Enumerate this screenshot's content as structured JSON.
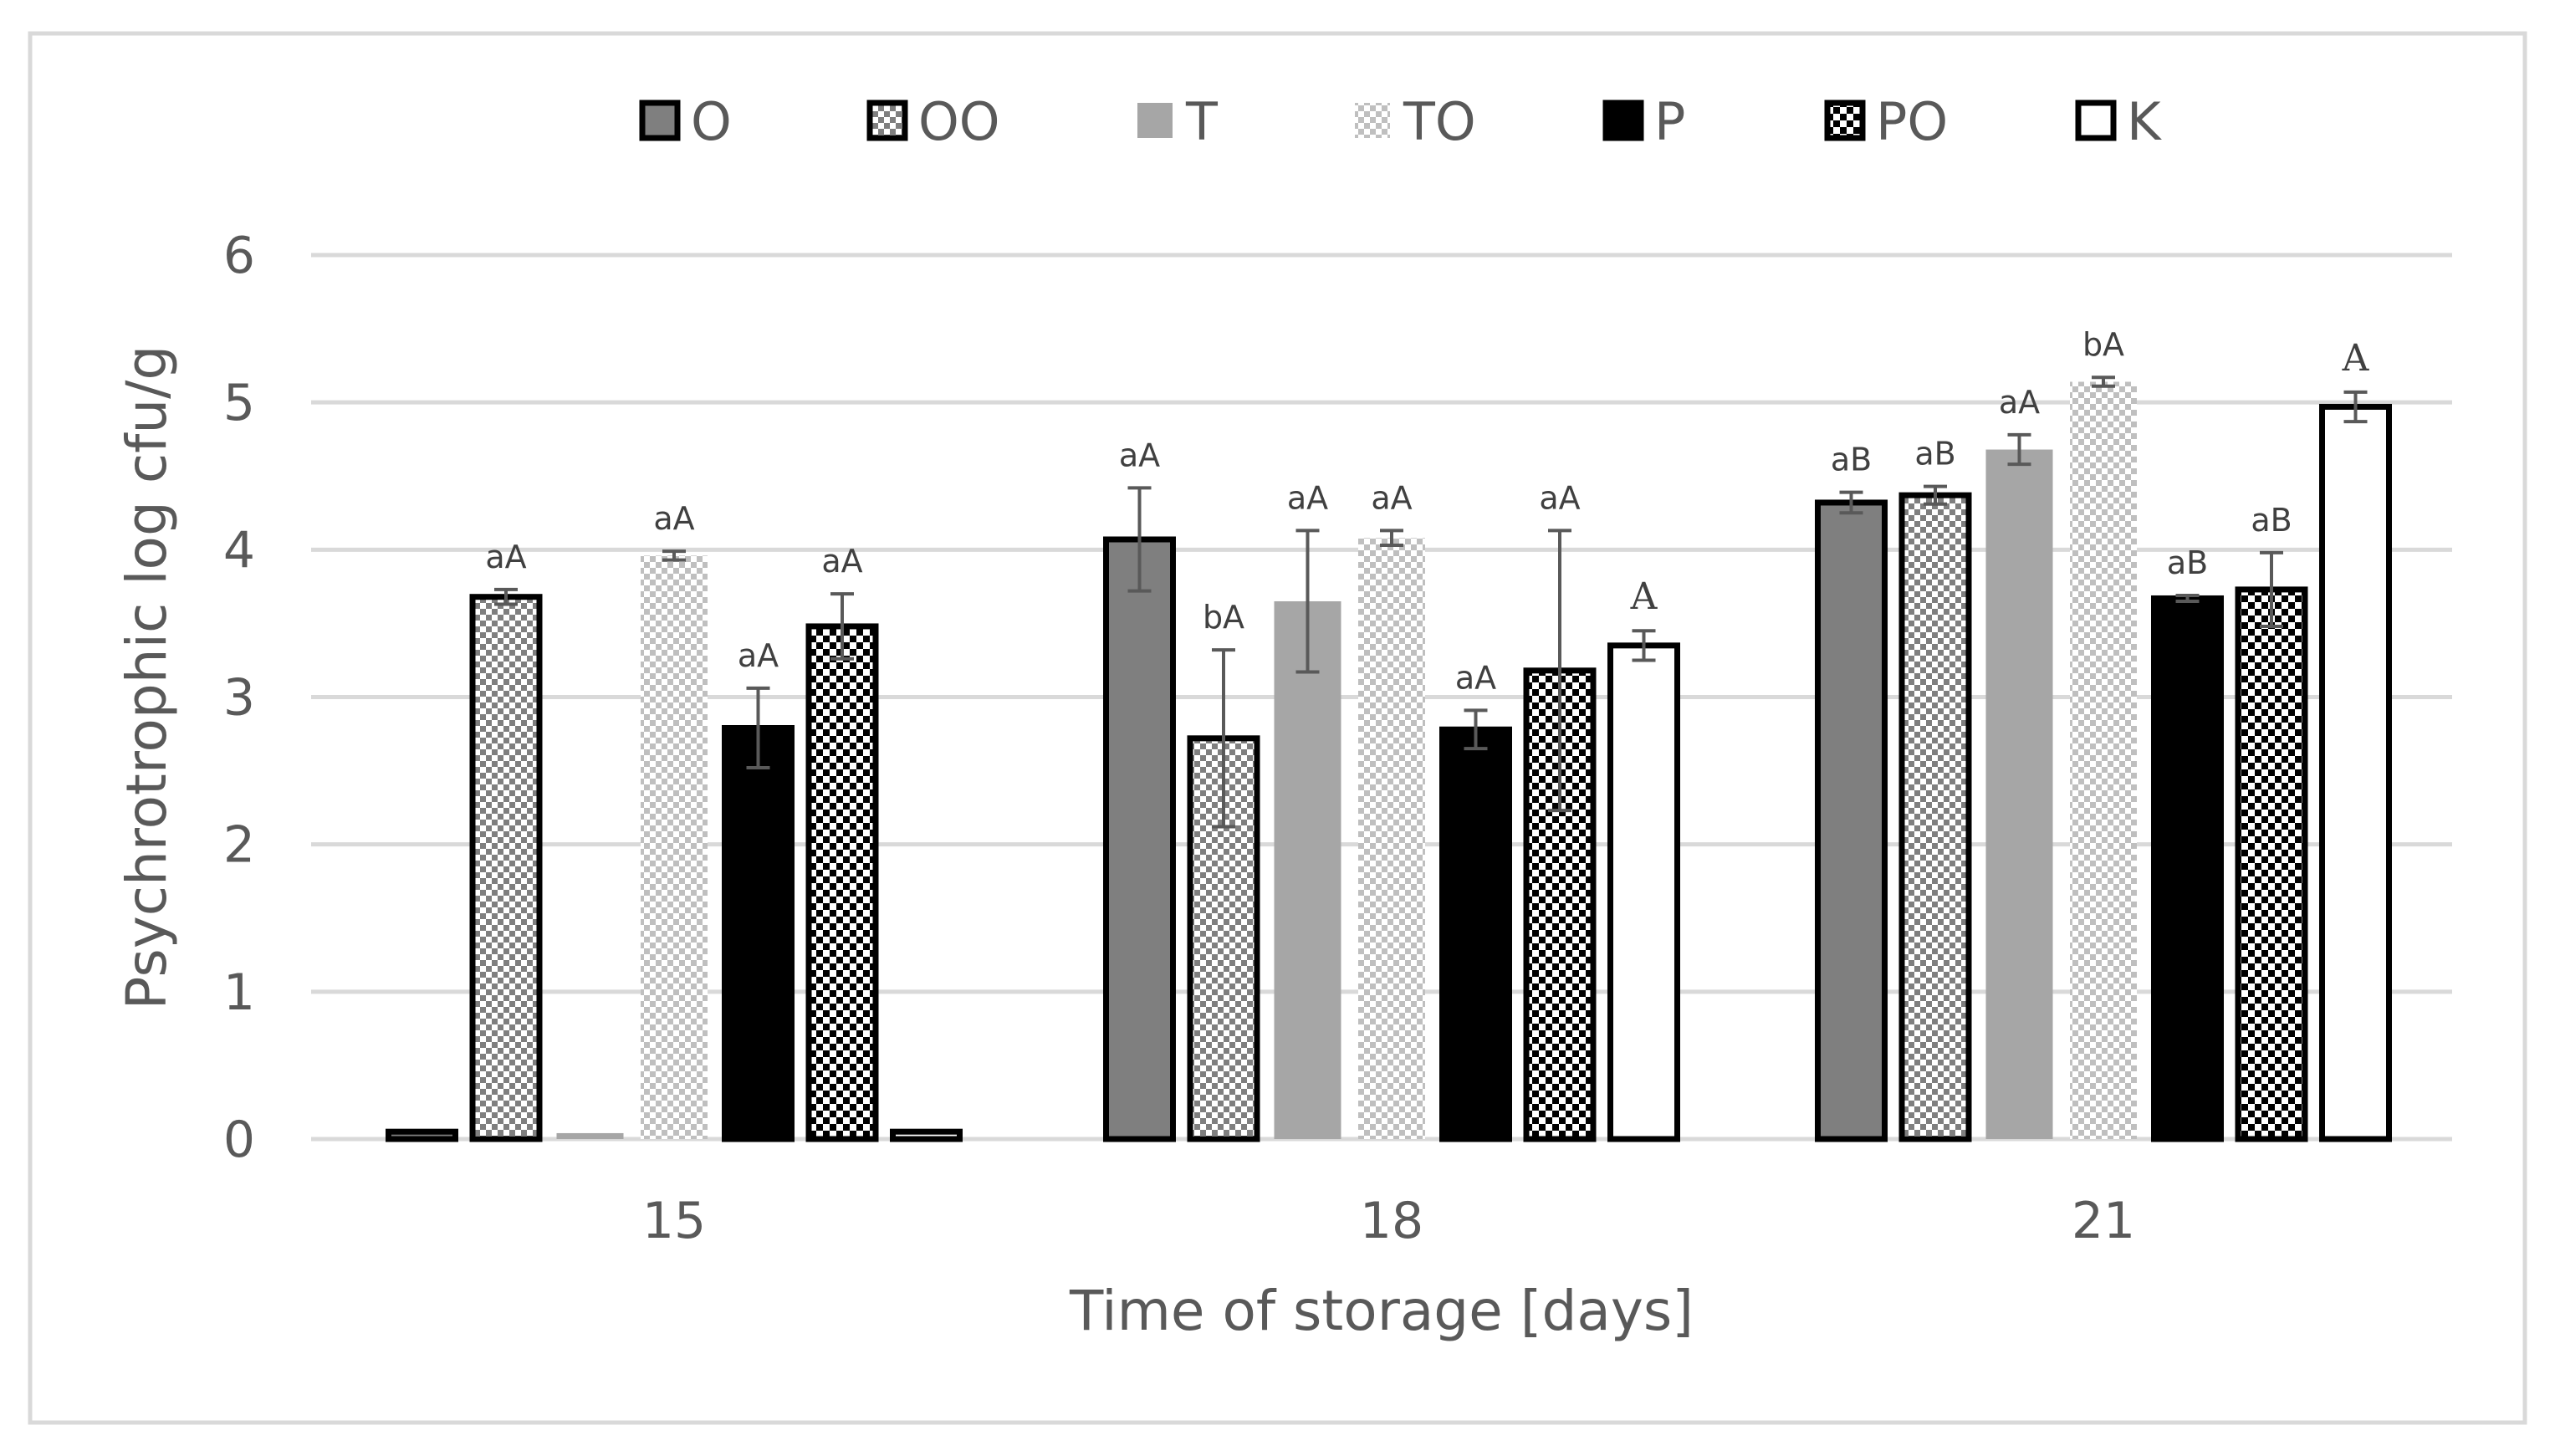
{
  "chart_data": {
    "type": "bar",
    "title": "",
    "xlabel": "Time of storage [days]",
    "ylabel": "Psychrotrophic log cfu/g",
    "ylim": [
      0,
      6
    ],
    "yticks": [
      "0",
      "1",
      "2",
      "3",
      "4",
      "5",
      "6"
    ],
    "grid": true,
    "legend_position": "top",
    "categories": [
      "15",
      "18",
      "21"
    ],
    "series": [
      {
        "name": "O",
        "pattern": "solid-gray",
        "values": [
          0.05,
          4.07,
          4.32
        ],
        "errors": [
          0,
          0.35,
          0.07
        ],
        "annotations": [
          "",
          "aA",
          "aB"
        ]
      },
      {
        "name": "OO",
        "pattern": "check-gray",
        "values": [
          3.68,
          2.72,
          4.37
        ],
        "errors": [
          0.05,
          0.6,
          0.06
        ],
        "annotations": [
          "aA",
          "bA",
          "aB"
        ]
      },
      {
        "name": "T",
        "pattern": "solid-light",
        "values": [
          0.04,
          3.65,
          4.68
        ],
        "errors": [
          0,
          0.48,
          0.1
        ],
        "annotations": [
          "",
          "aA",
          "aA"
        ]
      },
      {
        "name": "TO",
        "pattern": "check-light",
        "values": [
          3.96,
          4.08,
          5.14
        ],
        "errors": [
          0.03,
          0.05,
          0.03
        ],
        "annotations": [
          "aA",
          "aA",
          "bA"
        ]
      },
      {
        "name": "P",
        "pattern": "solid-black",
        "values": [
          2.79,
          2.78,
          3.67
        ],
        "errors": [
          0.27,
          0.13,
          0.02
        ],
        "annotations": [
          "aA",
          "aA",
          "aB"
        ]
      },
      {
        "name": "PO",
        "pattern": "check-black",
        "values": [
          3.48,
          3.18,
          3.73
        ],
        "errors": [
          0.22,
          0.95,
          0.25
        ],
        "annotations": [
          "aA",
          "aA",
          "aB"
        ]
      },
      {
        "name": "K",
        "pattern": "white",
        "values": [
          0.05,
          3.35,
          4.97
        ],
        "errors": [
          0,
          0.1,
          0.1
        ],
        "annotations": [
          "",
          "A",
          "A"
        ]
      }
    ],
    "colors": {
      "solid_gray": "#7f7f7f",
      "solid_light": "#a6a6a6",
      "solid_black": "#000000",
      "outline": "#000000",
      "grid": "#d9d9d9",
      "error_bar": "#595959",
      "frame": "#d9d9d9"
    }
  }
}
